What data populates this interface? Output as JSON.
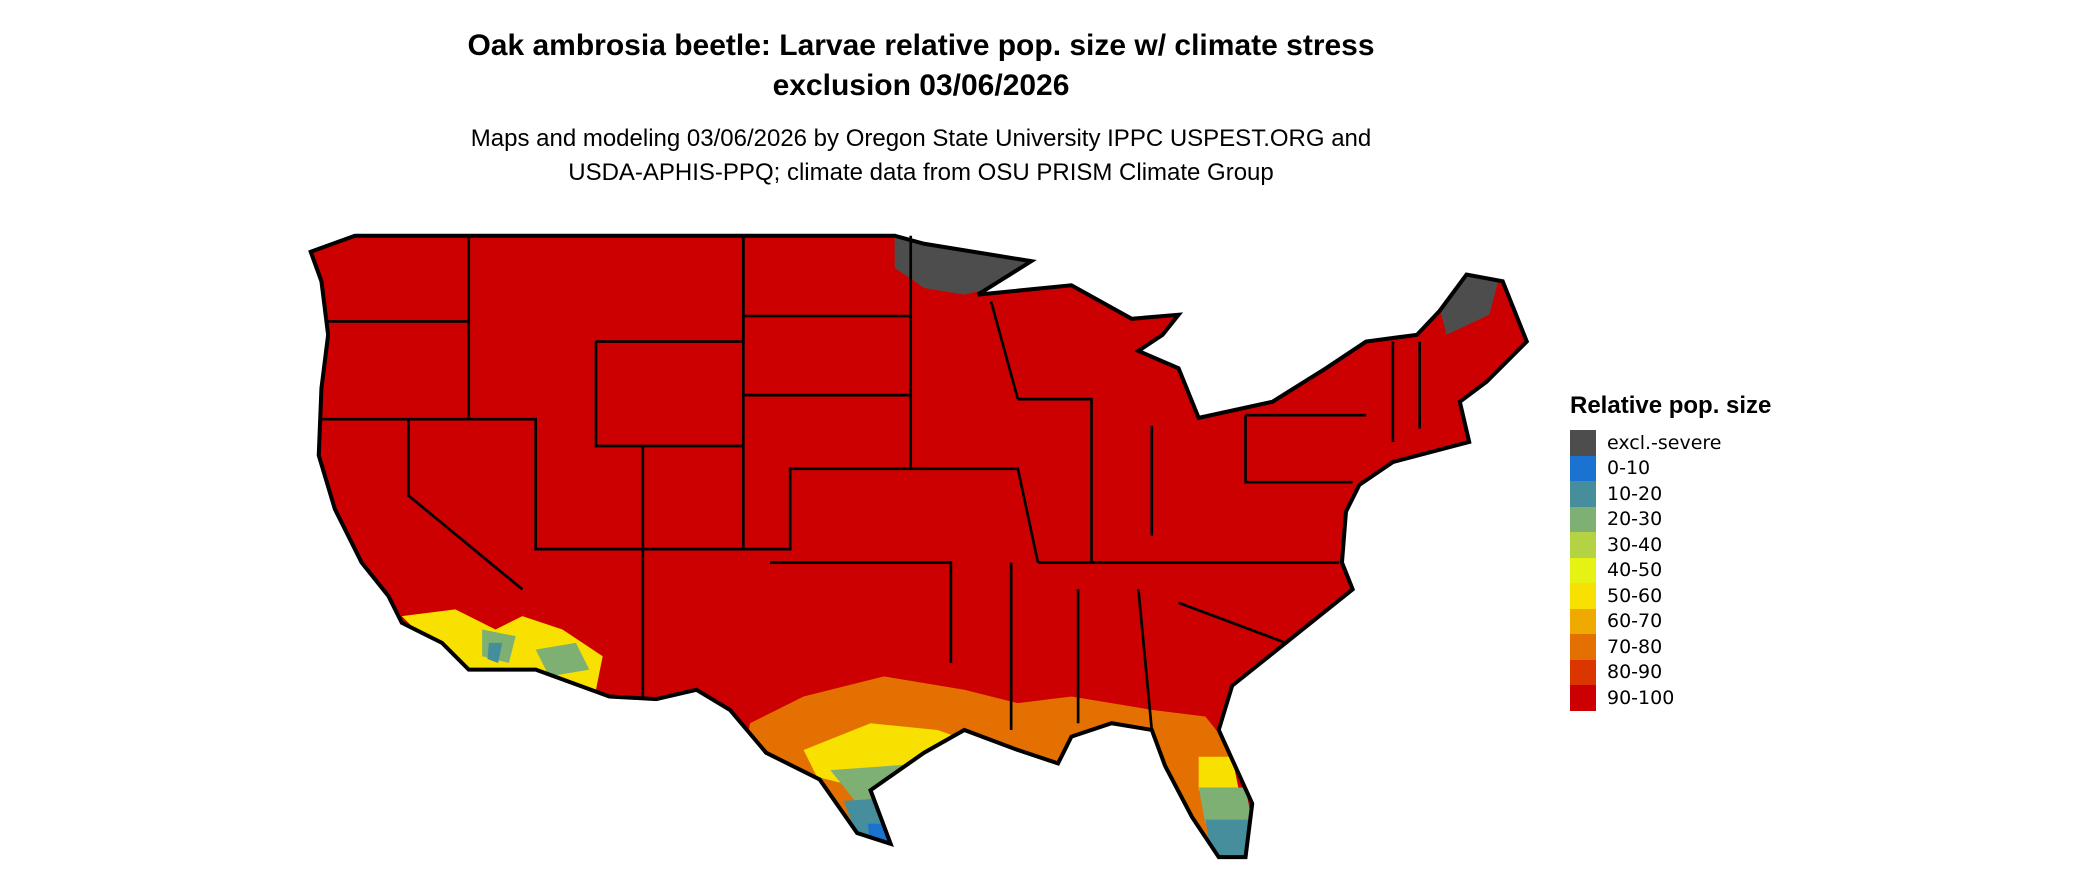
{
  "title": {
    "line1": "Oak ambrosia beetle: Larvae relative pop. size w/ climate stress",
    "line2": "exclusion 03/06/2026"
  },
  "subtitle": {
    "line1": "Maps and modeling 03/06/2026 by Oregon State University IPPC USPEST.ORG and",
    "line2": "USDA-APHIS-PPQ; climate data from OSU PRISM Climate Group"
  },
  "legend": {
    "title": "Relative pop. size",
    "items": [
      {
        "label": "excl.-severe",
        "color": "#4d4d4d"
      },
      {
        "label": "0-10",
        "color": "#1a73d0"
      },
      {
        "label": "10-20",
        "color": "#468e9c"
      },
      {
        "label": "20-30",
        "color": "#7eb074"
      },
      {
        "label": "30-40",
        "color": "#b3d345"
      },
      {
        "label": "40-50",
        "color": "#e6f114"
      },
      {
        "label": "50-60",
        "color": "#f8e000"
      },
      {
        "label": "60-70",
        "color": "#eeaa00"
      },
      {
        "label": "70-80",
        "color": "#e37000"
      },
      {
        "label": "80-90",
        "color": "#db3500"
      },
      {
        "label": "90-100",
        "color": "#cc0000"
      }
    ]
  }
}
